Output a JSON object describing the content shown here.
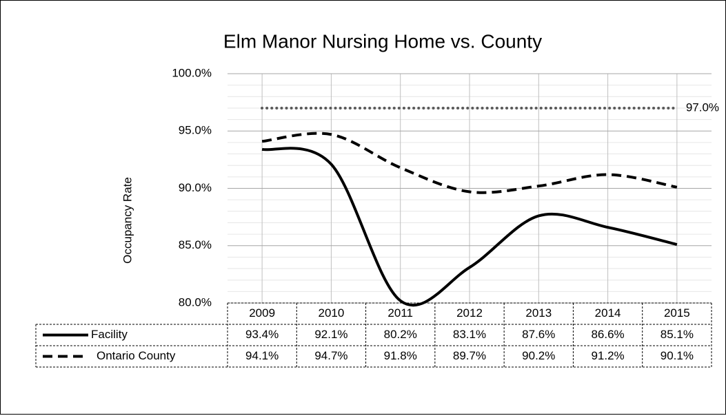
{
  "chart_data": {
    "type": "line",
    "title": "Elm Manor Nursing Home vs. County",
    "y_label": "Occupancy Rate",
    "categories": [
      "2009",
      "2010",
      "2011",
      "2012",
      "2013",
      "2014",
      "2015"
    ],
    "series": [
      {
        "name": "Facility",
        "color": "#000000",
        "dash": "solid",
        "values": [
          93.4,
          92.1,
          80.2,
          83.1,
          87.6,
          86.6,
          85.1
        ],
        "value_labels": [
          "93.4%",
          "92.1%",
          "80.2%",
          "83.1%",
          "87.6%",
          "86.6%",
          "85.1%"
        ]
      },
      {
        "name": "Ontario County",
        "color": "#000000",
        "dash": "dashed",
        "values": [
          94.1,
          94.7,
          91.8,
          89.7,
          90.2,
          91.2,
          90.1
        ],
        "value_labels": [
          "94.1%",
          "94.7%",
          "91.8%",
          "89.7%",
          "90.2%",
          "91.2%",
          "90.1%"
        ]
      }
    ],
    "target": {
      "value": 97,
      "label": "97.0%",
      "color": "#595959"
    },
    "ylim": [
      80,
      100
    ],
    "yticks": [
      {
        "value": 80,
        "label": "80.0%"
      },
      {
        "value": 85,
        "label": "85.0%"
      },
      {
        "value": 90,
        "label": "90.0%"
      },
      {
        "value": 95,
        "label": "95.0%"
      },
      {
        "value": 100,
        "label": "100.0%"
      }
    ],
    "minor_yticks": [
      81,
      82,
      83,
      84,
      86,
      87,
      88,
      89,
      91,
      92,
      93,
      94,
      96,
      97,
      98,
      99
    ],
    "grid": true,
    "smooth": true
  }
}
